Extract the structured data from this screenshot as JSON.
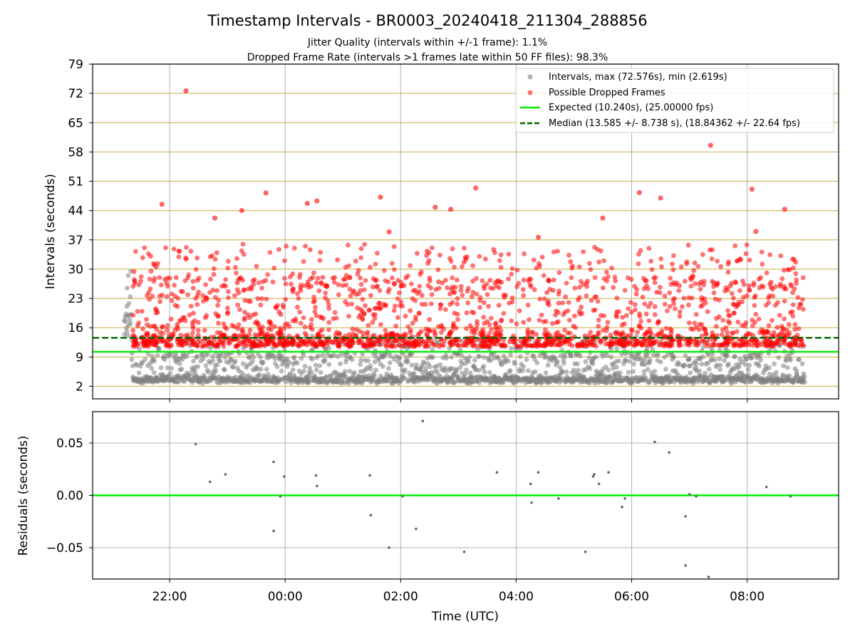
{
  "title": "Timestamp Intervals - BR0003_20240418_211304_288856",
  "subtitle_1": "Jitter Quality (intervals within +/-1 frame): 1.1%",
  "subtitle_2": "Dropped Frame Rate (intervals >1 frames late within 50 FF files): 98.3%",
  "colors": {
    "intervals": "#808080",
    "dropped": "#ff0000",
    "expected": "#00ee00",
    "median": "#006400",
    "hgrid": "#d4bb6a",
    "grid": "#b0b0b0"
  },
  "chart_data": [
    {
      "type": "scatter",
      "ylabel": "Intervals (seconds)",
      "ylim": [
        -1,
        79
      ],
      "y_ticks": [
        "2",
        "9",
        "16",
        "23",
        "30",
        "37",
        "44",
        "51",
        "58",
        "65",
        "72",
        "79"
      ],
      "x_range_hours": [
        "20:40",
        "09:35"
      ],
      "grid": "on",
      "legend_placement": "top-right",
      "legend": [
        "Intervals, max (72.576s), min (2.619s)",
        "Possible Dropped Frames",
        "Expected (10.240s), (25.00000 fps)",
        "Median (13.585 +/- 8.738 s), (18.84362 +/- 22.64 fps)"
      ],
      "series": [
        {
          "name": "Intervals, max (72.576s), min (2.619s)",
          "time_span": [
            "21:13",
            "09:00"
          ],
          "value_range": [
            2.619,
            72.576
          ]
        },
        {
          "name": "Possible Dropped Frames",
          "points": [
            {
              "x": "22:17",
              "y": 72.6
            },
            {
              "x": "07:22",
              "y": 59.6
            },
            {
              "x": "03:18",
              "y": 49.4
            },
            {
              "x": "08:05",
              "y": 49.1
            },
            {
              "x": "23:40",
              "y": 48.2
            },
            {
              "x": "06:08",
              "y": 48.3
            },
            {
              "x": "01:39",
              "y": 47.2
            },
            {
              "x": "06:30",
              "y": 47.0
            },
            {
              "x": "00:33",
              "y": 46.3
            },
            {
              "x": "21:52",
              "y": 45.5
            },
            {
              "x": "00:23",
              "y": 45.7
            },
            {
              "x": "02:36",
              "y": 44.8
            },
            {
              "x": "08:39",
              "y": 44.3
            },
            {
              "x": "23:15",
              "y": 44.0
            },
            {
              "x": "02:52",
              "y": 44.3
            },
            {
              "x": "05:30",
              "y": 42.2
            },
            {
              "x": "22:47",
              "y": 42.2
            },
            {
              "x": "08:09",
              "y": 39.0
            },
            {
              "x": "01:48",
              "y": 38.9
            },
            {
              "x": "04:23",
              "y": 37.6
            }
          ]
        },
        {
          "name": "Expected (10.240s), (25.00000 fps)",
          "value": 10.24
        },
        {
          "name": "Median (13.585 +/- 8.738 s), (18.84362 +/- 22.64 fps)",
          "value": 13.585
        }
      ]
    },
    {
      "type": "scatter",
      "xlabel": "Time (UTC)",
      "ylabel": "Residuals (seconds)",
      "ylim": [
        -0.08,
        0.08
      ],
      "y_ticks": [
        "0.05",
        "0.00",
        "−0.05"
      ],
      "x_ticks": [
        "22:00",
        "00:00",
        "02:00",
        "04:00",
        "06:00",
        "08:00"
      ],
      "grid": "on",
      "reference_line": 0.0,
      "points": [
        {
          "x": "22:27",
          "y": 0.049
        },
        {
          "x": "22:42",
          "y": 0.013
        },
        {
          "x": "22:58",
          "y": 0.02
        },
        {
          "x": "23:48",
          "y": 0.032
        },
        {
          "x": "23:48",
          "y": -0.034
        },
        {
          "x": "23:55",
          "y": -0.001
        },
        {
          "x": "23:59",
          "y": 0.018
        },
        {
          "x": "00:32",
          "y": 0.019
        },
        {
          "x": "00:33",
          "y": 0.009
        },
        {
          "x": "01:28",
          "y": 0.019
        },
        {
          "x": "01:29",
          "y": -0.019
        },
        {
          "x": "01:48",
          "y": -0.05
        },
        {
          "x": "02:02",
          "y": -0.001
        },
        {
          "x": "02:16",
          "y": -0.032
        },
        {
          "x": "02:23",
          "y": 0.071
        },
        {
          "x": "03:06",
          "y": -0.054
        },
        {
          "x": "03:40",
          "y": 0.022
        },
        {
          "x": "04:15",
          "y": 0.011
        },
        {
          "x": "04:16",
          "y": -0.007
        },
        {
          "x": "04:23",
          "y": 0.022
        },
        {
          "x": "04:44",
          "y": -0.003
        },
        {
          "x": "05:12",
          "y": -0.054
        },
        {
          "x": "05:20",
          "y": 0.018
        },
        {
          "x": "05:21",
          "y": 0.02
        },
        {
          "x": "05:26",
          "y": 0.011
        },
        {
          "x": "05:36",
          "y": 0.022
        },
        {
          "x": "05:50",
          "y": -0.011
        },
        {
          "x": "05:53",
          "y": -0.003
        },
        {
          "x": "06:24",
          "y": 0.051
        },
        {
          "x": "06:39",
          "y": 0.041
        },
        {
          "x": "06:56",
          "y": -0.067
        },
        {
          "x": "06:56",
          "y": -0.02
        },
        {
          "x": "07:00",
          "y": 0.001
        },
        {
          "x": "07:07",
          "y": -0.001
        },
        {
          "x": "07:20",
          "y": -0.078
        },
        {
          "x": "08:20",
          "y": 0.008
        },
        {
          "x": "08:45",
          "y": -0.001
        }
      ]
    }
  ]
}
